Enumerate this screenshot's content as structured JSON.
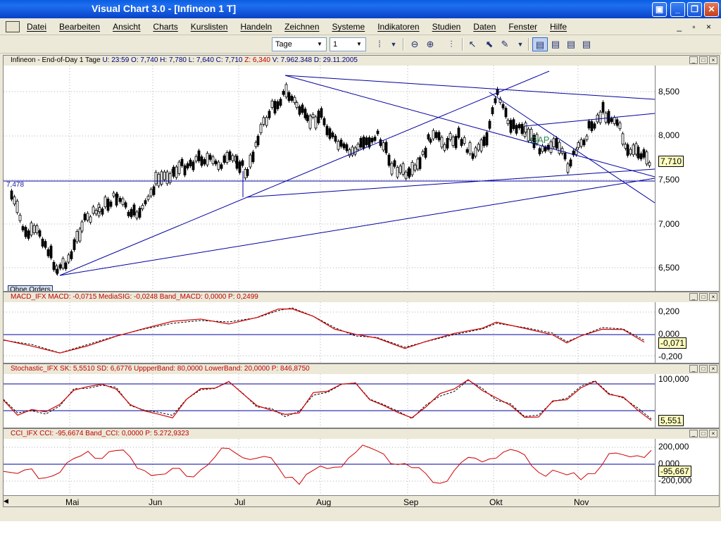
{
  "window": {
    "title": "Visual Chart  3.0 - [Infineon 1 T]",
    "buttons": [
      "▣",
      "_",
      "❐",
      "✕"
    ]
  },
  "menubar": {
    "items": [
      "Datei",
      "Bearbeiten",
      "Ansicht",
      "Charts",
      "Kurslisten",
      "Handeln",
      "Zeichnen",
      "Systeme",
      "Indikatoren",
      "Studien",
      "Daten",
      "Fenster",
      "Hilfe"
    ],
    "mdi": "_ ▫ ×"
  },
  "toolbar": {
    "period_value": "Tage",
    "interval_value": "1"
  },
  "price_pane": {
    "header": "Infineon - End-of-Day 1 Tage  U: 23:59  O: 7,740  H: 7,780  L: 7,640  C: 7,710  Z: 6,340  V: 7.962.348  D: 29.11.2005",
    "header_parts": [
      {
        "text": "Infineon - End-of-Day 1 Tage  ",
        "color": "#000000"
      },
      {
        "text": "U: 23:59  O: 7,740  H: 7,780  L: 7,640  C: 7,710  ",
        "color": "#000080"
      },
      {
        "text": "Z: 6,340  ",
        "color": "#c00000"
      },
      {
        "text": "V: 7.962.348  D: 29.11.2005",
        "color": "#000080"
      }
    ],
    "y_ticks": [
      "8,500",
      "8,000",
      "7,500",
      "7,000",
      "6,500"
    ],
    "last_value": "7,710",
    "level_label": "7,478",
    "gap_label": "GAP",
    "orders_label": "Ohne Orders"
  },
  "macd_pane": {
    "header": "MACD_IFX  MACD: -0,0715  MediaSIG: -0,0248  Band_MACD: 0,0000  P: 0,2499",
    "y_ticks": [
      "0,200",
      "0,000",
      "-0,200"
    ],
    "last_value": "-0,071"
  },
  "stoch_pane": {
    "header": "Stochastic_IFX  SK: 5,5510  SD: 6,6776  UppperBand: 80,0000  LowerBand: 20,0000  P: 846,8750",
    "y_ticks": [
      "100,000",
      "5,551"
    ],
    "last_value": "5,551"
  },
  "cci_pane": {
    "header": "CCI_IFX  CCI: -95,6674  Band_CCI: 0,0000  P: 5.272,9323",
    "y_ticks": [
      "200,000",
      "0,000",
      "-200,000"
    ],
    "last_value": "-95,667"
  },
  "time_axis": {
    "months": [
      "Mai",
      "Jun",
      "Jul",
      "Aug",
      "Sep",
      "Okt",
      "Nov"
    ]
  },
  "colors": {
    "title_bar": "#0a5ee0",
    "price_bars": "#000000",
    "trendlines": "#0000a0",
    "indicator_line": "#d00000",
    "signal_line": "#000000",
    "band_line": "#0000a0"
  }
}
